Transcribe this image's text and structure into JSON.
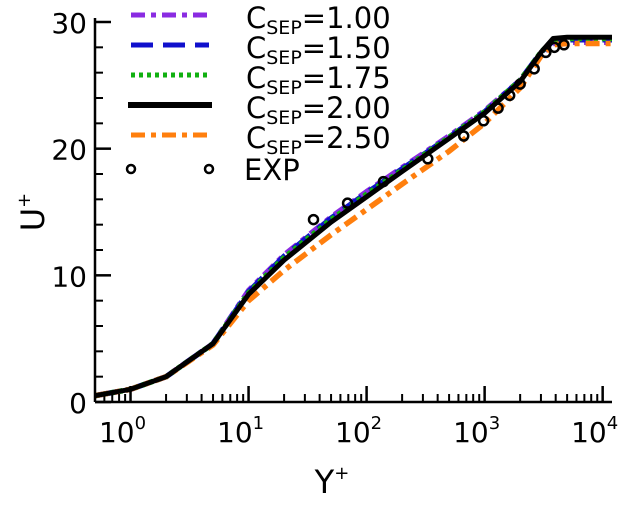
{
  "chart_data": {
    "type": "line",
    "xlabel": "Y",
    "xlabel_sup": "+",
    "ylabel": "U",
    "ylabel_sup": "+",
    "x_scale": "log",
    "xlim": [
      0.5,
      12000
    ],
    "ylim": [
      0,
      30
    ],
    "x_ticks": [
      {
        "base": "10",
        "exp": "0",
        "value": 1
      },
      {
        "base": "10",
        "exp": "1",
        "value": 10
      },
      {
        "base": "10",
        "exp": "2",
        "value": 100
      },
      {
        "base": "10",
        "exp": "3",
        "value": 1000
      },
      {
        "base": "10",
        "exp": "4",
        "value": 10000
      }
    ],
    "y_ticks": [
      {
        "label": "0",
        "value": 0
      },
      {
        "label": "10",
        "value": 10
      },
      {
        "label": "20",
        "value": 20
      },
      {
        "label": "30",
        "value": 30
      }
    ],
    "grid": false,
    "legend_position": "top-left",
    "series": [
      {
        "name": "C",
        "sub": "SEP",
        "value_label": "=1.00",
        "color": "#8a2be2",
        "dash": "14 6 5 6",
        "x": [
          0.5,
          1,
          2,
          5,
          10,
          20,
          50,
          100,
          200,
          500,
          1000,
          2000,
          3000,
          3800,
          5000,
          12000
        ],
        "y": [
          0.5,
          1.0,
          2.0,
          4.6,
          8.8,
          11.6,
          14.6,
          16.6,
          18.5,
          21.0,
          23.0,
          25.4,
          27.5,
          28.3,
          28.4,
          28.4
        ]
      },
      {
        "name": "C",
        "sub": "SEP",
        "value_label": "=1.50",
        "color": "#1010cc",
        "dash": "22 10",
        "x": [
          0.5,
          1,
          2,
          5,
          10,
          20,
          50,
          100,
          200,
          500,
          1000,
          2000,
          3000,
          3800,
          5000,
          12000
        ],
        "y": [
          0.5,
          1.0,
          2.0,
          4.6,
          8.7,
          11.5,
          14.5,
          16.5,
          18.4,
          20.9,
          22.9,
          25.4,
          27.6,
          28.5,
          28.6,
          28.6
        ]
      },
      {
        "name": "C",
        "sub": "SEP",
        "value_label": "=1.75",
        "color": "#10b010",
        "dash": "4 4",
        "x": [
          0.5,
          1,
          2,
          5,
          10,
          20,
          50,
          100,
          200,
          500,
          1000,
          2000,
          3000,
          3800,
          5000,
          12000
        ],
        "y": [
          0.5,
          1.0,
          2.0,
          4.6,
          8.6,
          11.4,
          14.4,
          16.4,
          18.3,
          20.9,
          22.9,
          25.4,
          27.6,
          28.6,
          28.7,
          28.7
        ]
      },
      {
        "name": "C",
        "sub": "SEP",
        "value_label": "=2.00",
        "color": "#000000",
        "dash": "",
        "x": [
          0.5,
          1,
          2,
          5,
          10,
          20,
          50,
          100,
          200,
          500,
          1000,
          2000,
          3000,
          3800,
          5000,
          12000
        ],
        "y": [
          0.5,
          1.0,
          2.0,
          4.6,
          8.5,
          11.2,
          14.2,
          16.2,
          18.2,
          20.8,
          22.8,
          25.3,
          27.6,
          28.7,
          28.8,
          28.8
        ]
      },
      {
        "name": "C",
        "sub": "SEP",
        "value_label": "=2.50",
        "color": "#ff7f0e",
        "dash": "14 6 5 6",
        "x": [
          0.5,
          1,
          2,
          5,
          10,
          20,
          50,
          100,
          200,
          500,
          1000,
          2000,
          3000,
          3800,
          5000,
          12000
        ],
        "y": [
          0.5,
          1.0,
          2.0,
          4.5,
          8.0,
          10.4,
          13.2,
          15.2,
          17.2,
          19.8,
          22.0,
          24.8,
          27.3,
          28.2,
          28.3,
          28.3
        ]
      }
    ],
    "exp": {
      "name": "EXP",
      "x": [
        35.5,
        69,
        139,
        330,
        665,
        980,
        1300,
        1630,
        2000,
        2630,
        3300,
        3900,
        4700
      ],
      "y": [
        14.4,
        15.7,
        17.4,
        19.2,
        21.0,
        22.2,
        23.2,
        24.2,
        25.1,
        26.3,
        27.6,
        28.0,
        28.2
      ]
    }
  }
}
